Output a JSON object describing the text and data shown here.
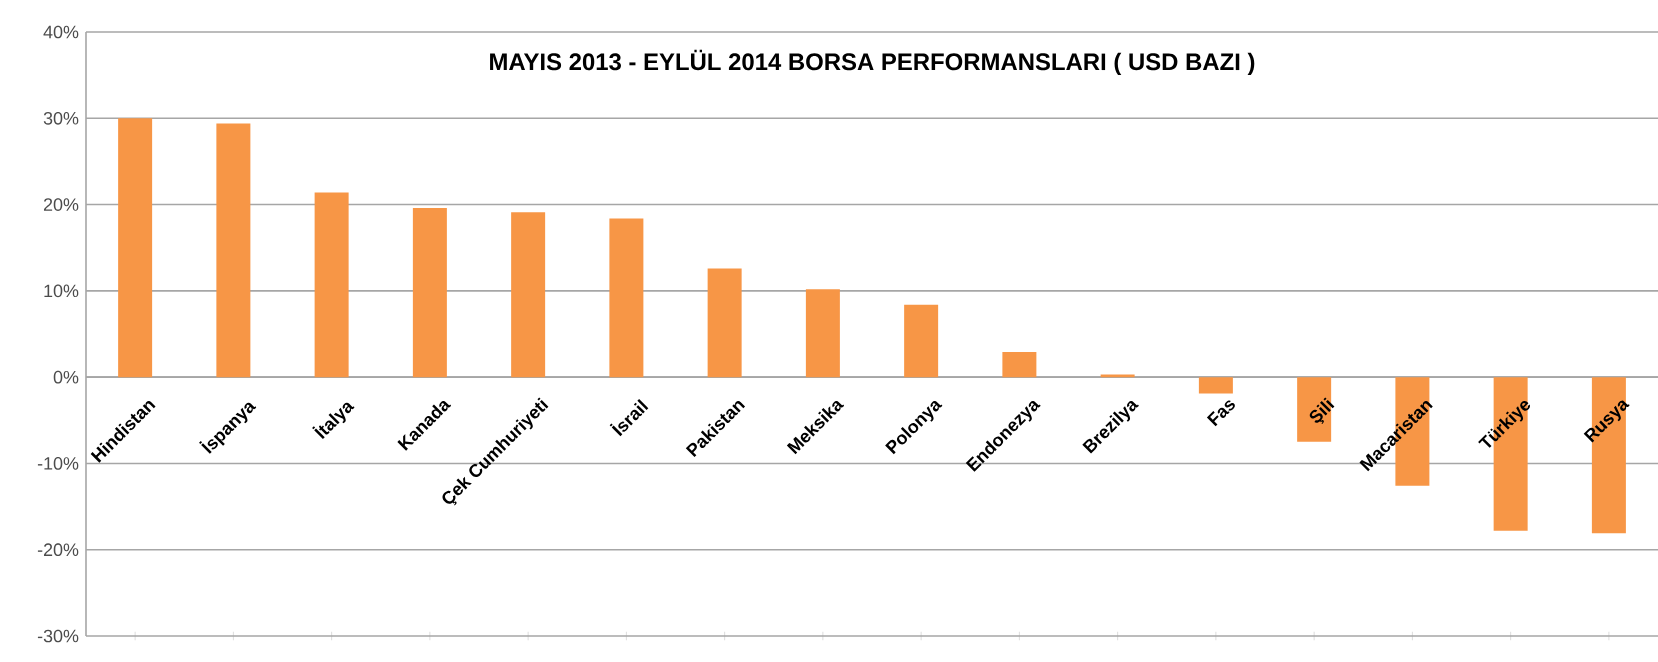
{
  "chart_data": {
    "type": "bar",
    "title": "MAYIS 2013 - EYLÜL 2014 BORSA PERFORMANSLARI ( USD BAZI )",
    "categories": [
      "Hindistan",
      "İspanya",
      "İtalya",
      "Kanada",
      "Çek Cumhuriyeti",
      "İsrail",
      "Pakistan",
      "Meksika",
      "Polonya",
      "Endonezya",
      "Brezilya",
      "Fas",
      "Şili",
      "Macaristan",
      "Türkiye",
      "Rusya"
    ],
    "values": [
      30.0,
      29.4,
      21.4,
      19.6,
      19.1,
      18.4,
      12.6,
      10.2,
      8.4,
      2.9,
      0.3,
      -1.9,
      -7.5,
      -12.6,
      -17.8,
      -18.1
    ],
    "color": "#f79646",
    "ylim": [
      -30,
      40
    ],
    "yticks": [
      {
        "value": -30,
        "label": "-30%"
      },
      {
        "value": -20,
        "label": "-20%"
      },
      {
        "value": -10,
        "label": "-10%"
      },
      {
        "value": 0,
        "label": "0%"
      },
      {
        "value": 10,
        "label": "10%"
      },
      {
        "value": 20,
        "label": "20%"
      },
      {
        "value": 30,
        "label": "30%"
      },
      {
        "value": 40,
        "label": "40%"
      }
    ],
    "grid": "y"
  }
}
